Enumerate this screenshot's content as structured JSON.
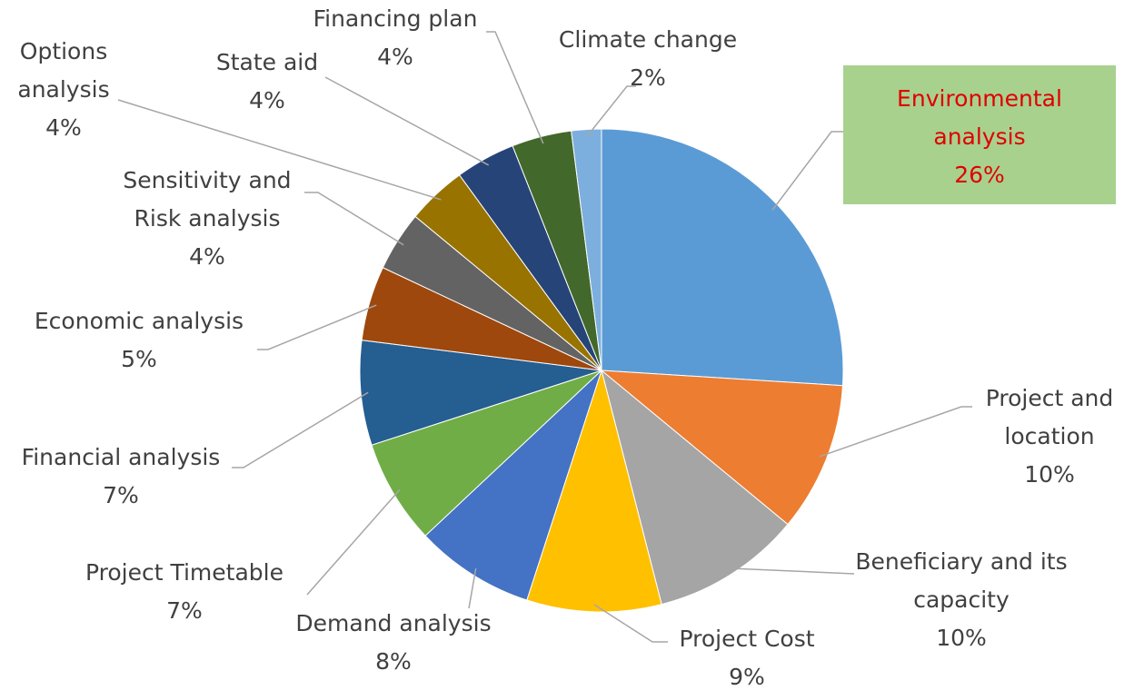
{
  "chart_data": {
    "type": "pie",
    "categories": [
      "Environmental analysis",
      "Project and location",
      "Beneficiary and its capacity",
      "Project Cost",
      "Demand analysis",
      "Project Timetable",
      "Financial analysis",
      "Economic analysis",
      "Sensitivity and Risk analysis",
      "Options analysis",
      "State aid",
      "Financing plan",
      "Climate change"
    ],
    "values": [
      26,
      10,
      10,
      9,
      8,
      7,
      7,
      5,
      4,
      4,
      4,
      4,
      2
    ],
    "value_labels": [
      "26%",
      "10%",
      "10%",
      "9%",
      "8%",
      "7%",
      "7%",
      "5%",
      "4%",
      "4%",
      "4%",
      "4%",
      "2%"
    ],
    "colors": [
      "#5b9bd5",
      "#ed7d31",
      "#a5a5a5",
      "#ffc000",
      "#4472c4",
      "#70ad47",
      "#255e91",
      "#9e480e",
      "#636363",
      "#997300",
      "#264478",
      "#43682b",
      "#7cafdd"
    ]
  }
}
